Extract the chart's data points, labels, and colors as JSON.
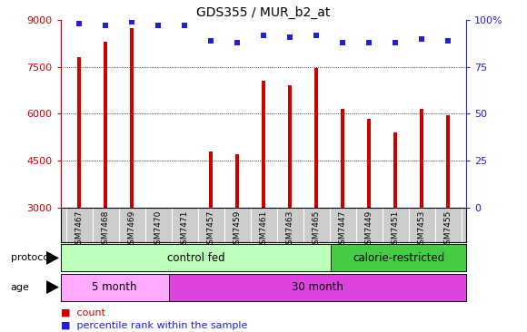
{
  "title": "GDS355 / MUR_b2_at",
  "samples": [
    "GSM7467",
    "GSM7468",
    "GSM7469",
    "GSM7470",
    "GSM7471",
    "GSM7457",
    "GSM7459",
    "GSM7461",
    "GSM7463",
    "GSM7465",
    "GSM7447",
    "GSM7449",
    "GSM7451",
    "GSM7453",
    "GSM7455"
  ],
  "counts": [
    7800,
    8300,
    8750,
    0,
    0,
    4800,
    4700,
    7050,
    6900,
    7450,
    6150,
    5850,
    5400,
    6150,
    5950
  ],
  "percentiles": [
    98,
    97,
    99,
    97,
    97,
    89,
    88,
    92,
    91,
    92,
    88,
    88,
    88,
    90,
    89
  ],
  "ylim_left": [
    3000,
    9000
  ],
  "ylim_right": [
    0,
    100
  ],
  "yticks_left": [
    3000,
    4500,
    6000,
    7500,
    9000
  ],
  "yticks_right": [
    0,
    25,
    50,
    75,
    100
  ],
  "bar_color": "#cc0000",
  "dot_color": "#2222cc",
  "background_color": "#ffffff",
  "tick_label_bg": "#cccccc",
  "protocol_groups": [
    {
      "label": "control fed",
      "start": 0,
      "end": 10,
      "color": "#bbffbb"
    },
    {
      "label": "calorie-restricted",
      "start": 10,
      "end": 15,
      "color": "#44cc44"
    }
  ],
  "age_groups": [
    {
      "label": "5 month",
      "start": 0,
      "end": 4,
      "color": "#ffaaff"
    },
    {
      "label": "30 month",
      "start": 4,
      "end": 15,
      "color": "#dd44dd"
    }
  ],
  "left_axis_color": "#cc0000",
  "right_axis_color": "#2222cc",
  "bar_width": 0.12,
  "dot_size": 18
}
